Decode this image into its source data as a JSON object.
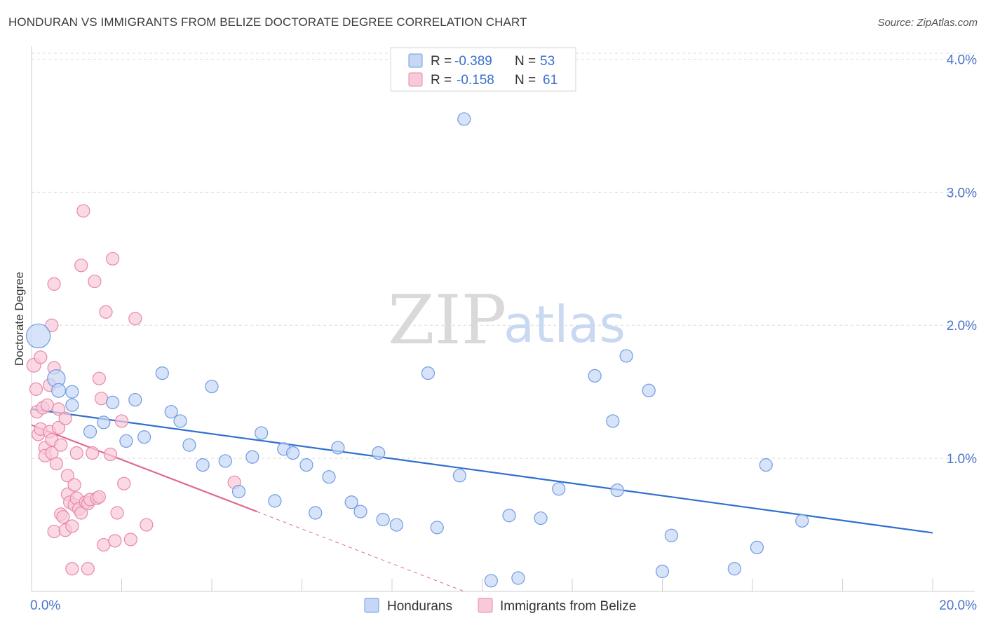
{
  "title": "HONDURAN VS IMMIGRANTS FROM BELIZE DOCTORATE DEGREE CORRELATION CHART",
  "source": "Source: ZipAtlas.com",
  "colors": {
    "blue": "#6f9be3",
    "blue_fill": "#c4d7f5",
    "blue_line": "#2f6fcf",
    "pink": "#e888a8",
    "pink_fill": "#f8c9d8",
    "pink_line": "#e06a93",
    "grid": "#dcdcdc",
    "axis_text": "#4a74c9"
  },
  "legend": {
    "rows": [
      {
        "r_label": "R = ",
        "r_value": "-0.389",
        "n_label": "N = ",
        "n_value": "53"
      },
      {
        "r_label": "R = ",
        "r_value": "-0.158",
        "n_label": "N = ",
        "n_value": "61"
      }
    ]
  },
  "watermark": {
    "zip": "ZIP",
    "atlas": "atlas"
  },
  "chart_data": {
    "type": "scatter",
    "title": "HONDURAN VS IMMIGRANTS FROM BELIZE DOCTORATE DEGREE CORRELATION CHART",
    "xlabel": "",
    "ylabel": "Doctorate Degree",
    "xlim": [
      0,
      20
    ],
    "ylim": [
      0,
      4.15
    ],
    "x_tick_labels": [
      "0.0%",
      "20.0%"
    ],
    "y_ticks": [
      1,
      2,
      3,
      4
    ],
    "y_tick_labels": [
      "1.0%",
      "2.0%",
      "3.0%",
      "4.0%"
    ],
    "series": [
      {
        "name": "Hondurans",
        "color": "blue",
        "trend": {
          "x": [
            0,
            20
          ],
          "y": [
            1.37,
            0.44
          ]
        },
        "points": [
          [
            0.15,
            1.92,
            1.9
          ],
          [
            0.55,
            1.6,
            1.4
          ],
          [
            0.6,
            1.51,
            1.1
          ],
          [
            0.9,
            1.5,
            1.0
          ],
          [
            0.9,
            1.4,
            1.0
          ],
          [
            1.3,
            1.2,
            1.0
          ],
          [
            1.6,
            1.27,
            1.0
          ],
          [
            1.8,
            1.42,
            1.0
          ],
          [
            2.1,
            1.13,
            1.0
          ],
          [
            2.3,
            1.44,
            1.0
          ],
          [
            2.5,
            1.16,
            1.0
          ],
          [
            2.9,
            1.64,
            1.0
          ],
          [
            3.1,
            1.35,
            1.0
          ],
          [
            3.3,
            1.28,
            1.0
          ],
          [
            3.5,
            1.1,
            1.0
          ],
          [
            3.8,
            0.95,
            1.0
          ],
          [
            4.0,
            1.54,
            1.0
          ],
          [
            4.3,
            0.98,
            1.0
          ],
          [
            4.6,
            0.75,
            1.0
          ],
          [
            4.9,
            1.01,
            1.0
          ],
          [
            5.1,
            1.19,
            1.0
          ],
          [
            5.4,
            0.68,
            1.0
          ],
          [
            5.6,
            1.07,
            1.0
          ],
          [
            5.8,
            1.04,
            1.0
          ],
          [
            6.1,
            0.95,
            1.0
          ],
          [
            6.3,
            0.59,
            1.0
          ],
          [
            6.6,
            0.86,
            1.0
          ],
          [
            6.8,
            1.08,
            1.0
          ],
          [
            7.1,
            0.67,
            1.0
          ],
          [
            7.3,
            0.6,
            1.0
          ],
          [
            7.7,
            1.04,
            1.0
          ],
          [
            7.8,
            0.54,
            1.0
          ],
          [
            8.1,
            0.5,
            1.0
          ],
          [
            8.8,
            1.64,
            1.0
          ],
          [
            9.0,
            0.48,
            1.0
          ],
          [
            9.5,
            0.87,
            1.0
          ],
          [
            9.6,
            3.55,
            1.0
          ],
          [
            10.2,
            0.08,
            1.0
          ],
          [
            10.6,
            0.57,
            1.0
          ],
          [
            10.8,
            0.1,
            1.0
          ],
          [
            11.3,
            0.55,
            1.0
          ],
          [
            11.7,
            0.77,
            1.0
          ],
          [
            12.5,
            1.62,
            1.0
          ],
          [
            12.9,
            1.28,
            1.0
          ],
          [
            13.0,
            0.76,
            1.0
          ],
          [
            13.2,
            1.77,
            1.0
          ],
          [
            13.7,
            1.51,
            1.0
          ],
          [
            14.0,
            0.15,
            1.0
          ],
          [
            14.2,
            0.42,
            1.0
          ],
          [
            15.6,
            0.17,
            1.0
          ],
          [
            16.1,
            0.33,
            1.0
          ],
          [
            16.3,
            0.95,
            1.0
          ],
          [
            17.1,
            0.53,
            1.0
          ]
        ]
      },
      {
        "name": "Immigrants from Belize",
        "color": "pink",
        "trend_solid": {
          "x": [
            0,
            5
          ],
          "y": [
            1.25,
            0.6
          ]
        },
        "trend_dashed": {
          "x": [
            5,
            9.6
          ],
          "y": [
            0.6,
            0.0
          ]
        },
        "points": [
          [
            0.05,
            1.7,
            1.1
          ],
          [
            0.1,
            1.52,
            1.0
          ],
          [
            0.12,
            1.35,
            1.0
          ],
          [
            0.15,
            1.18,
            1.0
          ],
          [
            0.2,
            1.22,
            1.0
          ],
          [
            0.2,
            1.76,
            1.0
          ],
          [
            0.25,
            1.38,
            1.0
          ],
          [
            0.3,
            1.08,
            1.0
          ],
          [
            0.3,
            1.02,
            1.0
          ],
          [
            0.35,
            1.4,
            1.0
          ],
          [
            0.4,
            1.55,
            1.0
          ],
          [
            0.4,
            1.2,
            1.0
          ],
          [
            0.45,
            1.14,
            1.0
          ],
          [
            0.45,
            1.04,
            1.0
          ],
          [
            0.45,
            2.0,
            1.0
          ],
          [
            0.5,
            1.68,
            1.0
          ],
          [
            0.5,
            2.31,
            1.0
          ],
          [
            0.5,
            0.45,
            1.0
          ],
          [
            0.55,
            0.96,
            1.0
          ],
          [
            0.6,
            1.23,
            1.0
          ],
          [
            0.6,
            1.37,
            1.0
          ],
          [
            0.65,
            1.1,
            1.0
          ],
          [
            0.65,
            0.58,
            1.0
          ],
          [
            0.7,
            0.56,
            1.0
          ],
          [
            0.75,
            1.3,
            1.0
          ],
          [
            0.75,
            0.46,
            1.0
          ],
          [
            0.8,
            0.87,
            1.0
          ],
          [
            0.8,
            0.73,
            1.0
          ],
          [
            0.85,
            0.67,
            1.0
          ],
          [
            0.9,
            0.49,
            1.0
          ],
          [
            0.9,
            0.17,
            1.0
          ],
          [
            0.95,
            0.8,
            1.0
          ],
          [
            0.95,
            0.65,
            1.0
          ],
          [
            1.0,
            0.7,
            1.0
          ],
          [
            1.0,
            1.04,
            1.0
          ],
          [
            1.05,
            0.62,
            1.0
          ],
          [
            1.1,
            2.45,
            1.0
          ],
          [
            1.1,
            0.59,
            1.0
          ],
          [
            1.15,
            2.86,
            1.0
          ],
          [
            1.2,
            0.67,
            1.0
          ],
          [
            1.25,
            0.66,
            1.0
          ],
          [
            1.25,
            0.17,
            1.0
          ],
          [
            1.3,
            0.69,
            1.0
          ],
          [
            1.35,
            1.04,
            1.0
          ],
          [
            1.4,
            2.33,
            1.0
          ],
          [
            1.45,
            0.7,
            1.0
          ],
          [
            1.5,
            0.71,
            1.0
          ],
          [
            1.5,
            1.6,
            1.0
          ],
          [
            1.55,
            1.45,
            1.0
          ],
          [
            1.6,
            0.35,
            1.0
          ],
          [
            1.65,
            2.1,
            1.0
          ],
          [
            1.75,
            1.03,
            1.0
          ],
          [
            1.8,
            2.5,
            1.0
          ],
          [
            1.85,
            0.38,
            1.0
          ],
          [
            1.9,
            0.59,
            1.0
          ],
          [
            2.0,
            1.28,
            1.0
          ],
          [
            2.05,
            0.81,
            1.0
          ],
          [
            2.2,
            0.39,
            1.0
          ],
          [
            2.3,
            2.05,
            1.0
          ],
          [
            2.55,
            0.5,
            1.0
          ],
          [
            4.5,
            0.82,
            1.0
          ]
        ]
      }
    ],
    "legend_bottom": [
      "Hondurans",
      "Immigrants from Belize"
    ]
  }
}
